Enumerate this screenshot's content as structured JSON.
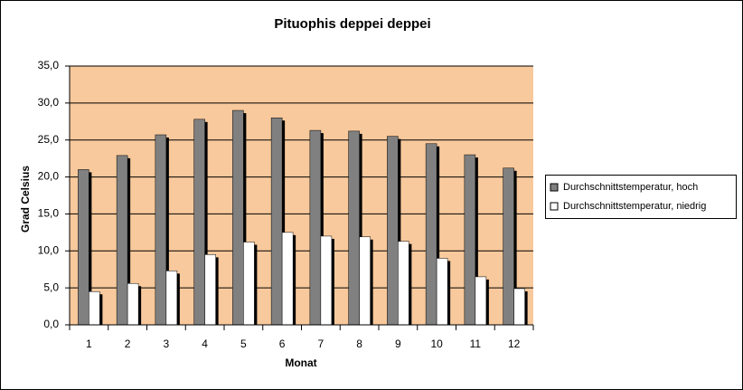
{
  "chart_data": {
    "type": "bar",
    "title": "Pituophis deppei deppei",
    "x_label": "Monat",
    "y_label": "Grad Celsius",
    "categories": [
      "1",
      "2",
      "3",
      "4",
      "5",
      "6",
      "7",
      "8",
      "9",
      "10",
      "11",
      "12"
    ],
    "series": [
      {
        "name": "Durchschnittstemperatur, hoch",
        "color": "#808080",
        "values": [
          21.0,
          22.9,
          25.7,
          27.8,
          29.0,
          28.0,
          26.3,
          26.2,
          25.5,
          24.5,
          23.0,
          21.2
        ]
      },
      {
        "name": "Durchschnittstemperatur, niedrig",
        "color": "#ffffff",
        "values": [
          4.5,
          5.6,
          7.3,
          9.5,
          11.2,
          12.5,
          12.0,
          11.9,
          11.3,
          9.0,
          6.5,
          4.9
        ]
      }
    ],
    "ylim": [
      0,
      35
    ],
    "yticks": [
      {
        "value": 0,
        "label": "0,0"
      },
      {
        "value": 5,
        "label": "5,0"
      },
      {
        "value": 10,
        "label": "10,0"
      },
      {
        "value": 15,
        "label": "15,0"
      },
      {
        "value": 20,
        "label": "20,0"
      },
      {
        "value": 25,
        "label": "25,0"
      },
      {
        "value": 30,
        "label": "30,0"
      },
      {
        "value": 35,
        "label": "35,0"
      }
    ],
    "grid": true,
    "plot_background": "#f8c99c",
    "legend_position": "right"
  }
}
